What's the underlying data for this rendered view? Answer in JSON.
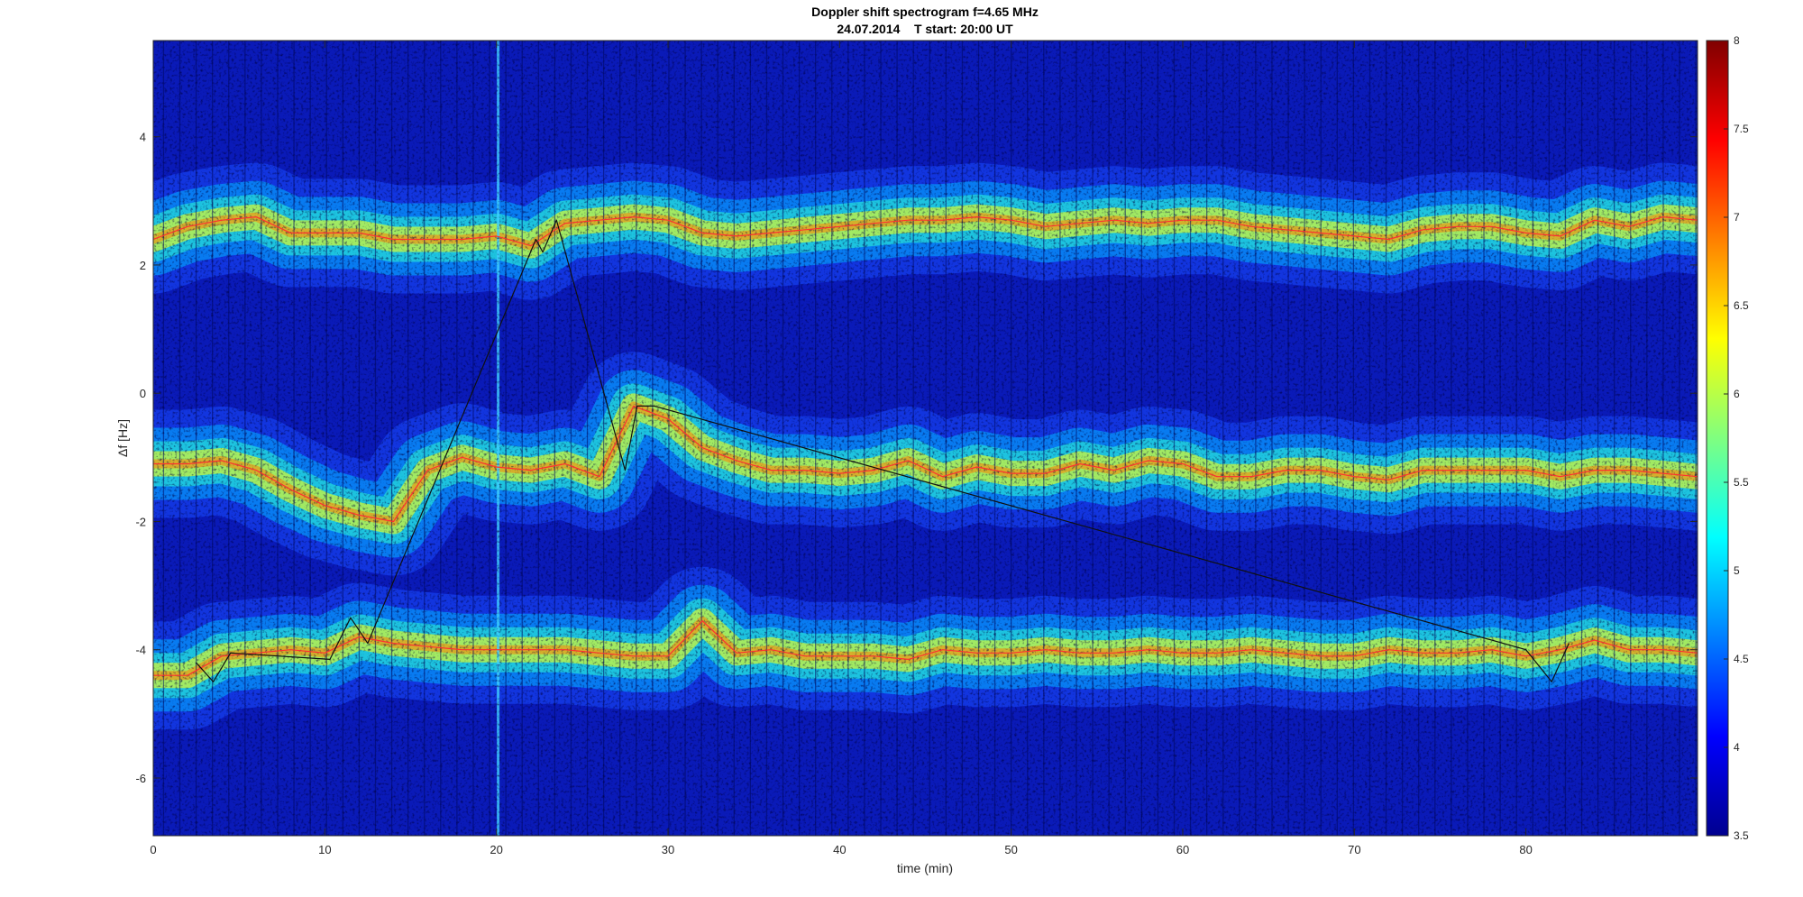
{
  "chart_data": {
    "type": "heatmap",
    "title": "Doppler shift spectrogram f=4.65 MHz",
    "subtitle": "24.07.2014    T start: 20:00 UT",
    "xlabel": "time (min)",
    "ylabel": "Δf [Hz]",
    "xlim": [
      0,
      90
    ],
    "ylim": [
      -6.9,
      5.5
    ],
    "xticks": [
      0,
      10,
      20,
      30,
      40,
      50,
      60,
      70,
      80
    ],
    "xtick_labels": [
      "0",
      "10",
      "20",
      "30",
      "40",
      "50",
      "60",
      "70",
      "80"
    ],
    "yticks": [
      4,
      2,
      0,
      -2,
      -4,
      -6
    ],
    "ytick_labels": [
      "4",
      "2",
      "0",
      "-2",
      "-4",
      "-6"
    ],
    "colormap": "jet",
    "clim": [
      3.5,
      8
    ],
    "colorbar_ticks": [
      8,
      7.5,
      7,
      6.5,
      6,
      5.5,
      5,
      4.5,
      4,
      3.5
    ],
    "colorbar_tick_labels": [
      "8",
      "7.5",
      "7",
      "6.5",
      "6",
      "5.5",
      "5",
      "4.5",
      "4",
      "3.5"
    ],
    "grid": false,
    "traces": [
      {
        "color": "#ff3030",
        "x": [
          0,
          2,
          4,
          6,
          8,
          10,
          12,
          14,
          16,
          18,
          20,
          22,
          24,
          26,
          28,
          30,
          32,
          34,
          36,
          38,
          40,
          42,
          44,
          46,
          48,
          50,
          52,
          54,
          56,
          58,
          60,
          62,
          64,
          66,
          68,
          70,
          72,
          74,
          76,
          78,
          80,
          82,
          84,
          86,
          88,
          90
        ],
        "y": [
          2.4,
          2.6,
          2.7,
          2.75,
          2.5,
          2.5,
          2.5,
          2.4,
          2.4,
          2.4,
          2.45,
          2.3,
          2.65,
          2.7,
          2.75,
          2.7,
          2.5,
          2.45,
          2.5,
          2.55,
          2.6,
          2.65,
          2.7,
          2.7,
          2.75,
          2.7,
          2.6,
          2.65,
          2.7,
          2.65,
          2.7,
          2.7,
          2.6,
          2.55,
          2.5,
          2.45,
          2.4,
          2.55,
          2.6,
          2.6,
          2.5,
          2.45,
          2.7,
          2.6,
          2.75,
          2.7
        ]
      },
      {
        "color": "#ff3030",
        "x": [
          0,
          2,
          4,
          6,
          8,
          10,
          12,
          14,
          16,
          18,
          20,
          22,
          24,
          26,
          28,
          30,
          32,
          34,
          36,
          38,
          40,
          42,
          44,
          46,
          48,
          50,
          52,
          54,
          56,
          58,
          60,
          62,
          64,
          66,
          68,
          70,
          72,
          74,
          76,
          78,
          80,
          82,
          84,
          86,
          88,
          90
        ],
        "y": [
          -1.1,
          -1.1,
          -1.05,
          -1.2,
          -1.5,
          -1.75,
          -1.9,
          -2.0,
          -1.2,
          -1.0,
          -1.15,
          -1.2,
          -1.1,
          -1.3,
          -0.2,
          -0.4,
          -0.85,
          -1.05,
          -1.2,
          -1.2,
          -1.25,
          -1.2,
          -1.05,
          -1.3,
          -1.15,
          -1.25,
          -1.25,
          -1.1,
          -1.2,
          -1.05,
          -1.1,
          -1.3,
          -1.3,
          -1.2,
          -1.2,
          -1.3,
          -1.35,
          -1.2,
          -1.2,
          -1.2,
          -1.2,
          -1.3,
          -1.2,
          -1.2,
          -1.25,
          -1.3
        ]
      },
      {
        "color": "#ff3030",
        "x": [
          0,
          2,
          4,
          6,
          8,
          10,
          12,
          14,
          16,
          18,
          20,
          22,
          24,
          26,
          28,
          30,
          32,
          34,
          36,
          38,
          40,
          42,
          44,
          46,
          48,
          50,
          52,
          54,
          56,
          58,
          60,
          62,
          64,
          66,
          68,
          70,
          72,
          74,
          76,
          78,
          80,
          82,
          84,
          86,
          88,
          90
        ],
        "y": [
          -4.4,
          -4.4,
          -4.1,
          -4.05,
          -4.0,
          -4.05,
          -3.8,
          -3.9,
          -3.95,
          -4.0,
          -4.0,
          -4.0,
          -4.0,
          -4.05,
          -4.1,
          -4.1,
          -3.55,
          -4.05,
          -4.0,
          -4.1,
          -4.1,
          -4.1,
          -4.15,
          -4.0,
          -4.05,
          -4.05,
          -4.0,
          -4.05,
          -4.05,
          -4.0,
          -4.05,
          -4.05,
          -4.0,
          -4.05,
          -4.1,
          -4.1,
          -4.0,
          -4.05,
          -4.05,
          -4.0,
          -4.1,
          -4.0,
          -3.85,
          -4.0,
          -4.0,
          -4.05
        ]
      },
      {
        "color": "#101010",
        "x": [
          2.5,
          3.5,
          4.5,
          10.3,
          11.5,
          12.5,
          22.3,
          22.7,
          23.5,
          27.5,
          28.2,
          29.2,
          80.0,
          81.5,
          82.5
        ],
        "y": [
          -4.2,
          -4.5,
          -4.05,
          -4.15,
          -3.5,
          -3.9,
          2.4,
          2.2,
          2.7,
          -1.2,
          -0.2,
          -0.2,
          -4.0,
          -4.5,
          -3.9
        ]
      }
    ]
  }
}
